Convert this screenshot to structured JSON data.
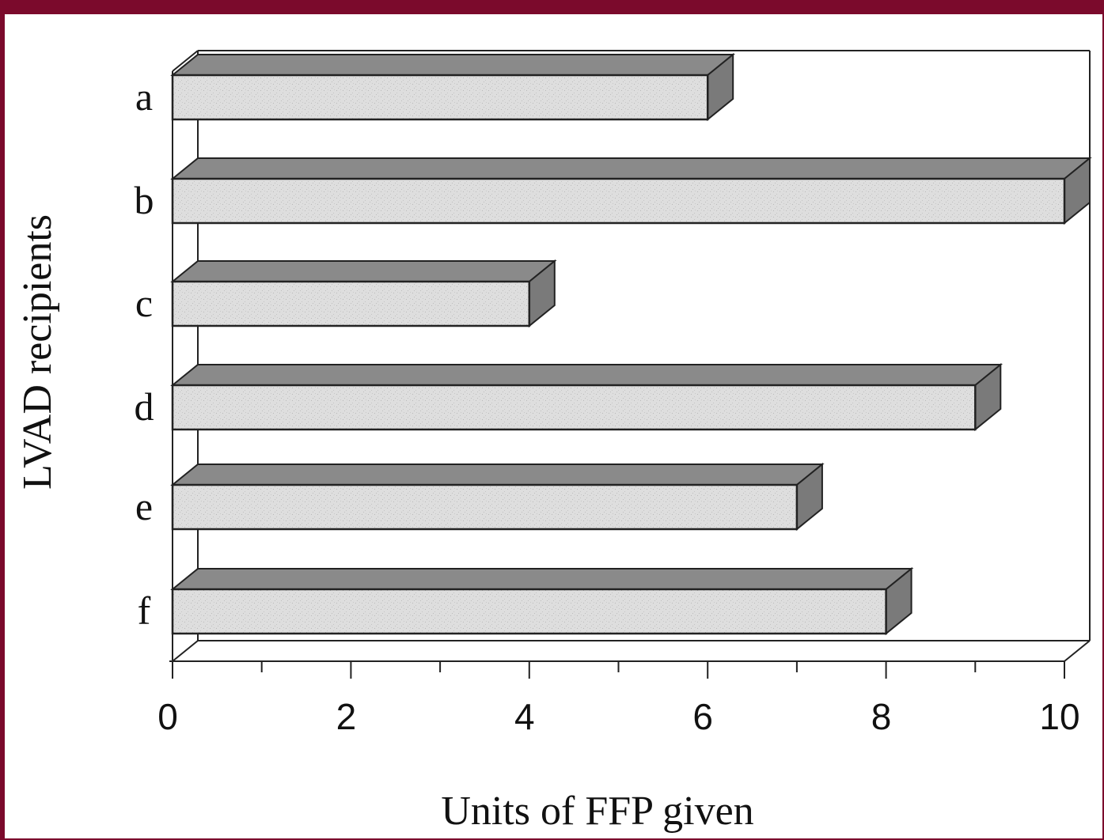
{
  "chart_data": {
    "type": "bar",
    "orientation": "horizontal",
    "categories": [
      "a",
      "b",
      "c",
      "d",
      "e",
      "f"
    ],
    "values": [
      6,
      10,
      4,
      9,
      7,
      8
    ],
    "xlabel": "Units of FFP given",
    "ylabel": "LVAD recipients",
    "xlim": [
      0,
      10
    ],
    "xticks": [
      "0",
      "2",
      "4",
      "6",
      "8",
      "10"
    ],
    "grid": false,
    "style": "3d",
    "colors": {
      "bar_front": "#dcdcdc",
      "bar_top": "#8a8a8a",
      "bar_side": "#7a7a7a",
      "frame_border": "#7b0a2c"
    }
  }
}
